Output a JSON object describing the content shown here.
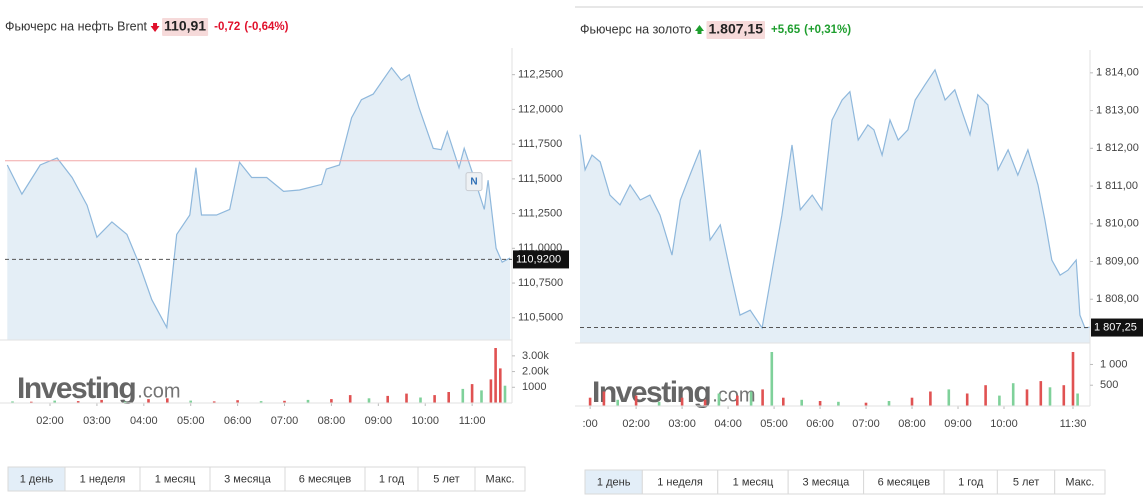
{
  "widgets": [
    {
      "header": {
        "title": "Фьючерс на нефть Brent",
        "direction": "down",
        "color": "#e0102b",
        "price": "110,91",
        "change": "-0,72",
        "change_pct": "(-0,64%)"
      },
      "chart": {
        "type": "area",
        "color": "#8fb8dc",
        "fill": "#e4eef6",
        "x": [
          1.09,
          1.4,
          1.79,
          2.15,
          2.47,
          2.79,
          3.0,
          3.32,
          3.64,
          3.91,
          4.17,
          4.49,
          4.7,
          4.98,
          5.11,
          5.23,
          5.55,
          5.83,
          6.04,
          6.3,
          6.62,
          6.98,
          7.32,
          7.79,
          7.89,
          8.17,
          8.43,
          8.64,
          8.89,
          9.28,
          9.49,
          9.66,
          9.87,
          10.17,
          10.34,
          10.47,
          10.72,
          10.83,
          11.04,
          11.26,
          11.34,
          11.51,
          11.64,
          11.81
        ],
        "values": [
          111.6,
          111.39,
          111.6,
          111.65,
          111.51,
          111.31,
          111.08,
          111.19,
          111.1,
          110.88,
          110.63,
          110.43,
          111.1,
          111.24,
          111.58,
          111.24,
          111.24,
          111.28,
          111.62,
          111.51,
          111.51,
          111.41,
          111.42,
          111.46,
          111.57,
          111.6,
          111.94,
          112.07,
          112.11,
          112.3,
          112.21,
          112.25,
          112.01,
          111.72,
          111.71,
          111.84,
          111.58,
          111.72,
          111.51,
          111.28,
          111.49,
          111.0,
          110.9,
          110.93
        ],
        "xlim": [
          1.04,
          11.85
        ],
        "ylim": [
          110.34,
          112.37
        ],
        "xticks": [
          {
            "value": 2,
            "label": "02:00"
          },
          {
            "value": 3,
            "label": "03:00"
          },
          {
            "value": 4,
            "label": "04:00"
          },
          {
            "value": 5,
            "label": "05:00"
          },
          {
            "value": 6,
            "label": "06:00"
          },
          {
            "value": 7,
            "label": "07:00"
          },
          {
            "value": 8,
            "label": "08:00"
          },
          {
            "value": 9,
            "label": "09:00"
          },
          {
            "value": 10,
            "label": "10:00"
          },
          {
            "value": 11,
            "label": "11:00"
          }
        ],
        "yticks": [
          {
            "value": 110.5,
            "label": "110,5000"
          },
          {
            "value": 110.75,
            "label": "110,7500"
          },
          {
            "value": 111,
            "label": "111,0000"
          },
          {
            "value": 111.25,
            "label": "111,2500"
          },
          {
            "value": 111.5,
            "label": "111,5000"
          },
          {
            "value": 111.75,
            "label": "111,7500"
          },
          {
            "value": 112,
            "label": "112,0000"
          },
          {
            "value": 112.25,
            "label": "112,2500"
          }
        ],
        "reference_line": 111.63,
        "last": {
          "value": 110.92,
          "label": "110,9200"
        },
        "annotation": {
          "text": "N",
          "x": 11.04,
          "value": 111.48
        }
      },
      "volume": {
        "type": "bar",
        "x": [
          1.2,
          1.6,
          2.1,
          2.6,
          3.1,
          3.6,
          4.1,
          4.5,
          5.0,
          5.5,
          6.0,
          6.5,
          7.0,
          7.5,
          8.0,
          8.4,
          8.8,
          9.2,
          9.6,
          9.9,
          10.2,
          10.5,
          10.8,
          11.0,
          11.2,
          11.4,
          11.5,
          11.6,
          11.7
        ],
        "values": [
          100,
          80,
          150,
          120,
          200,
          90,
          250,
          300,
          150,
          100,
          180,
          120,
          140,
          200,
          250,
          500,
          300,
          450,
          600,
          350,
          500,
          700,
          900,
          1200,
          800,
          1500,
          3500,
          2200,
          1100
        ],
        "colors": [
          "#7fd19a",
          "#e05252",
          "#7fd19a",
          "#e05252",
          "#e05252",
          "#7fd19a",
          "#e05252",
          "#e05252",
          "#7fd19a",
          "#e05252",
          "#e05252",
          "#7fd19a",
          "#e05252",
          "#7fd19a",
          "#e05252",
          "#e05252",
          "#7fd19a",
          "#e05252",
          "#e05252",
          "#7fd19a",
          "#e05252",
          "#e05252",
          "#7fd19a",
          "#e05252",
          "#7fd19a",
          "#e05252",
          "#e05252",
          "#e05252",
          "#7fd19a"
        ],
        "ylim": [
          0,
          3500
        ],
        "yticks": [
          1000,
          {
            "value": 2000,
            "label": "2.00k"
          },
          {
            "value": 3000,
            "label": "3.00k"
          }
        ]
      },
      "watermark": [
        "Investing",
        ".com"
      ],
      "buttons": [
        "1 день",
        "1 неделя",
        "1 месяц",
        "3 месяца",
        "6 месяцев",
        "1 год",
        "5 лет",
        "Макс."
      ],
      "active": 0
    },
    {
      "header": {
        "title": "Фьючерс на золото",
        "direction": "up",
        "color": "#1e9e2e",
        "price": "1.807,15",
        "change": "+5,65",
        "change_pct": "(+0,31%)"
      },
      "chart": {
        "type": "area",
        "color": "#8fb8dc",
        "fill": "#e4eef6",
        "x": [
          0.78,
          0.89,
          1.04,
          1.22,
          1.43,
          1.65,
          1.87,
          2.09,
          2.3,
          2.52,
          2.78,
          2.96,
          3.17,
          3.39,
          3.61,
          3.83,
          4.04,
          4.26,
          4.48,
          4.74,
          4.96,
          5.17,
          5.39,
          5.57,
          5.83,
          6.04,
          6.26,
          6.48,
          6.65,
          6.83,
          7.04,
          7.17,
          7.35,
          7.52,
          7.7,
          7.91,
          8.07,
          8.28,
          8.5,
          8.72,
          8.93,
          9.11,
          9.26,
          9.43,
          9.65,
          9.87,
          10.09,
          10.3,
          10.52,
          10.74,
          10.89,
          11.04,
          11.22,
          11.39,
          11.57,
          11.65,
          11.76,
          11.87
        ],
        "values": [
          1812.36,
          1811.43,
          1811.82,
          1811.64,
          1810.76,
          1810.5,
          1811.03,
          1810.63,
          1810.76,
          1810.23,
          1809.17,
          1810.63,
          1811.29,
          1811.96,
          1809.57,
          1809.97,
          1808.77,
          1807.58,
          1807.71,
          1807.24,
          1808.77,
          1810.23,
          1812.09,
          1810.37,
          1810.76,
          1810.37,
          1812.75,
          1813.28,
          1813.5,
          1812.22,
          1812.62,
          1812.49,
          1811.82,
          1812.75,
          1812.22,
          1812.49,
          1813.28,
          1813.68,
          1814.08,
          1813.28,
          1813.55,
          1812.89,
          1812.36,
          1813.42,
          1813.15,
          1811.43,
          1811.96,
          1811.29,
          1811.96,
          1811.03,
          1810.1,
          1809.04,
          1808.64,
          1808.77,
          1809.04,
          1807.58,
          1807.24,
          1807.26
        ],
        "xlim": [
          0.78,
          11.87
        ],
        "ylim": [
          1806.84,
          1814.34
        ],
        "xticks": [
          {
            "value": 1,
            "label": ":00"
          },
          {
            "value": 2,
            "label": "02:00"
          },
          {
            "value": 3,
            "label": "03:00"
          },
          {
            "value": 4,
            "label": "04:00"
          },
          {
            "value": 5,
            "label": "05:00"
          },
          {
            "value": 6,
            "label": "06:00"
          },
          {
            "value": 7,
            "label": "07:00"
          },
          {
            "value": 8,
            "label": "08:00"
          },
          {
            "value": 9,
            "label": "09:00"
          },
          {
            "value": 10,
            "label": "10:00"
          },
          {
            "value": 11.5,
            "label": "11:30"
          }
        ],
        "yticks": [
          {
            "value": 1808,
            "label": "1 808,00"
          },
          {
            "value": 1809,
            "label": "1 809,00"
          },
          {
            "value": 1810,
            "label": "1 810,00"
          },
          {
            "value": 1811,
            "label": "1 811,00"
          },
          {
            "value": 1812,
            "label": "1 812,00"
          },
          {
            "value": 1813,
            "label": "1 813,00"
          },
          {
            "value": 1814,
            "label": "1 814,00"
          }
        ],
        "last": {
          "value": 1807.25,
          "label": "1 807,25"
        }
      },
      "volume": {
        "type": "bar",
        "x": [
          1.0,
          1.3,
          1.6,
          2.0,
          2.5,
          3.0,
          3.5,
          3.8,
          4.2,
          4.5,
          4.75,
          4.95,
          5.2,
          5.6,
          6.0,
          6.4,
          7.0,
          7.5,
          8.0,
          8.4,
          8.8,
          9.2,
          9.6,
          9.9,
          10.2,
          10.5,
          10.8,
          11.0,
          11.3,
          11.5,
          11.6
        ],
        "values": [
          200,
          350,
          150,
          250,
          100,
          200,
          150,
          300,
          250,
          350,
          400,
          1300,
          200,
          150,
          120,
          100,
          80,
          120,
          200,
          350,
          400,
          300,
          500,
          250,
          550,
          400,
          600,
          450,
          500,
          1300,
          300
        ],
        "colors": [
          "#e05252",
          "#e05252",
          "#7fd19a",
          "#e05252",
          "#7fd19a",
          "#e05252",
          "#e05252",
          "#7fd19a",
          "#e05252",
          "#7fd19a",
          "#e05252",
          "#7fd19a",
          "#e05252",
          "#7fd19a",
          "#e05252",
          "#7fd19a",
          "#e05252",
          "#7fd19a",
          "#e05252",
          "#e05252",
          "#7fd19a",
          "#e05252",
          "#e05252",
          "#7fd19a",
          "#7fd19a",
          "#e05252",
          "#e05252",
          "#7fd19a",
          "#e05252",
          "#e05252",
          "#7fd19a"
        ],
        "ylim": [
          0,
          1300
        ],
        "yticks": [
          500,
          {
            "value": 1000,
            "label": "1 000"
          }
        ]
      },
      "watermark": [
        "Investing",
        ".com"
      ],
      "buttons": [
        "1 день",
        "1 неделя",
        "1 месяц",
        "3 месяца",
        "6 месяцев",
        "1 год",
        "5 лет",
        "Макс."
      ],
      "active": 0
    }
  ]
}
